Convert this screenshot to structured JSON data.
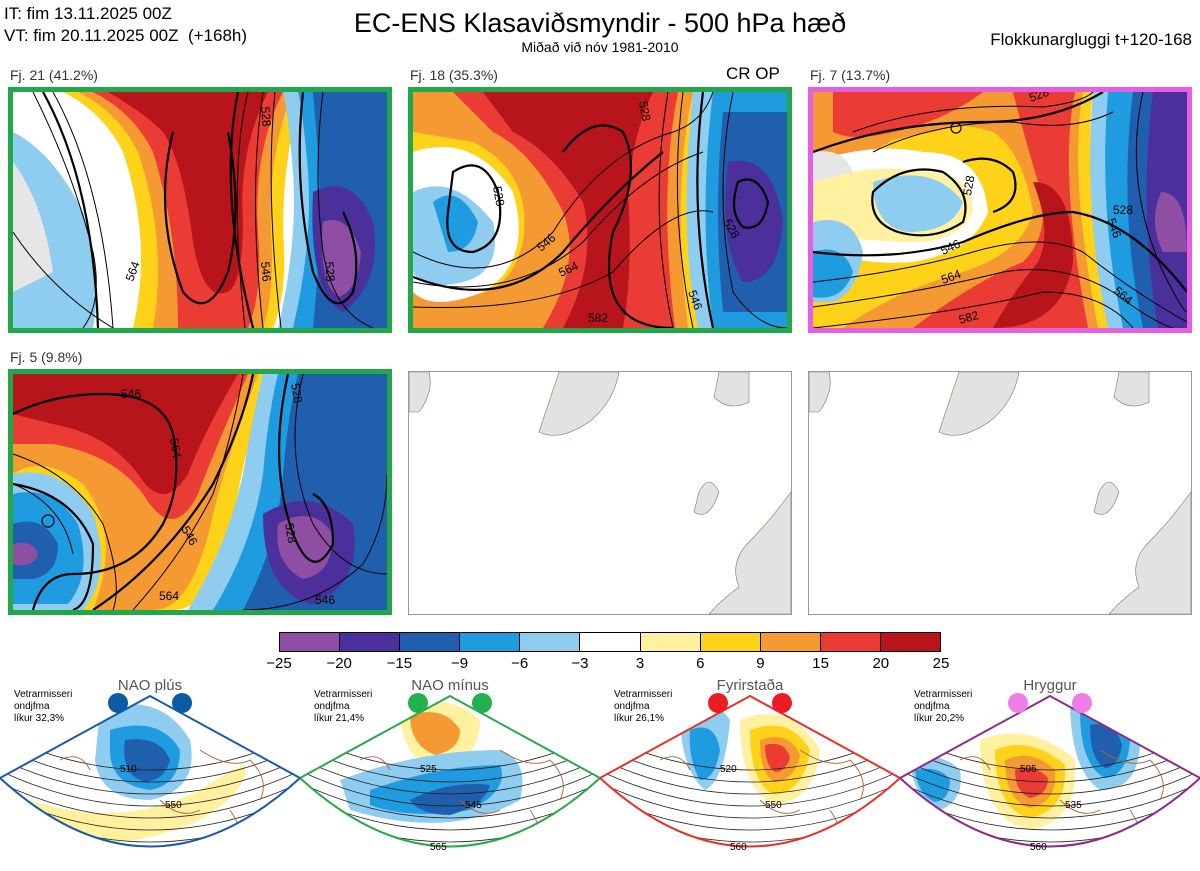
{
  "header": {
    "it_line": "IT: fim 13.11.2025 00Z",
    "vt_line": "VT: fim 20.11.2025 00Z  (+168h)",
    "title": "EC-ENS Klasaviðsmyndir - 500 hPa hæð",
    "subtitle": "Miðað við nóv 1981-2010",
    "window": "Flokkunargluggi t+120-168"
  },
  "panels": [
    {
      "label": "Fj. 21 (41.2%)",
      "border": "#22a84a",
      "crop": "",
      "contours": [
        "546",
        "564",
        "546",
        "528",
        "528",
        "546"
      ]
    },
    {
      "label": "Fj. 18 (35.3%)",
      "border": "#22a84a",
      "crop": "CR OP",
      "contours": [
        "528",
        "546",
        "564",
        "582",
        "528",
        "546",
        "528"
      ]
    },
    {
      "label": "Fj. 7 (13.7%)",
      "border": "#e65fe3",
      "crop": "",
      "contours": [
        "528",
        "528",
        "546",
        "564",
        "582",
        "546",
        "564",
        "528"
      ]
    },
    {
      "label": "Fj. 5 (9.8%)",
      "border": "#22a84a",
      "crop": "",
      "contours": [
        "546",
        "564",
        "546",
        "564",
        "528",
        "546",
        "528"
      ]
    }
  ],
  "colorbar": {
    "colors": [
      "#8e4ea3",
      "#4b2f9a",
      "#1f5fae",
      "#1f9be0",
      "#8fcdf0",
      "#ffffff",
      "#fff1a0",
      "#ffd21a",
      "#f59a32",
      "#ea3b34",
      "#b7141b"
    ],
    "ticks": [
      "−25",
      "−20",
      "−15",
      "−9",
      "−6",
      "−3",
      "3",
      "6",
      "9",
      "15",
      "20",
      "25"
    ]
  },
  "regimes": [
    {
      "name": "NAO plús",
      "color": "#1b5aa8",
      "dot": "#0d5aa7",
      "winter": [
        "Vetrarmisseri",
        "ondjfma",
        "líkur 32,3%"
      ],
      "labels": [
        "510",
        "550"
      ]
    },
    {
      "name": "NAO mínus",
      "color": "#2aa84a",
      "dot": "#22b14c",
      "winter": [
        "Vetrarmisseri",
        "ondjfma",
        "líkur 21,4%"
      ],
      "labels": [
        "525",
        "545",
        "565"
      ]
    },
    {
      "name": "Fyrirstaða",
      "color": "#e5332a",
      "dot": "#ed1c24",
      "winter": [
        "Vetrarmisseri",
        "ondjfma",
        "líkur 26,1%"
      ],
      "labels": [
        "520",
        "550",
        "560"
      ]
    },
    {
      "name": "Hryggur",
      "color": "#8e2a8e",
      "dot": "#ee7de9",
      "winter": [
        "Vetrarmisseri",
        "ondjfma",
        "líkur 20,2%"
      ],
      "labels": [
        "505",
        "535",
        "560"
      ]
    }
  ]
}
